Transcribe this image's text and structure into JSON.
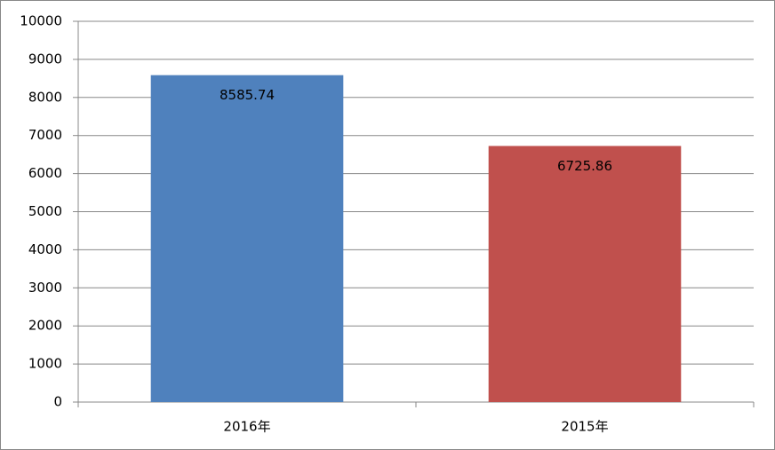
{
  "chart_data": {
    "type": "bar",
    "categories": [
      "2016年",
      "2015年"
    ],
    "values": [
      8585.74,
      6725.86
    ],
    "colors": [
      "#4f81bd",
      "#c0504d"
    ],
    "ylim": [
      0,
      10000
    ],
    "yticks": [
      0,
      1000,
      2000,
      3000,
      4000,
      5000,
      6000,
      7000,
      8000,
      9000,
      10000
    ],
    "grid": true,
    "data_labels": true
  }
}
